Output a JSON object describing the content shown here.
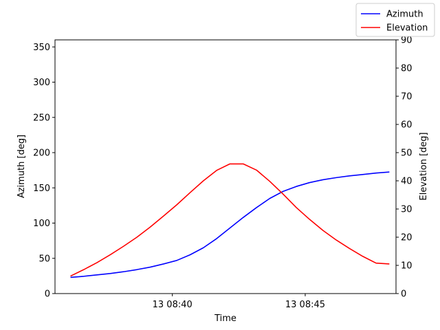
{
  "chart_data": {
    "type": "line",
    "x_unit": "time",
    "xlabel": "Time",
    "xlim": [
      "13 08:35:35",
      "13 08:48:25"
    ],
    "x_ticks": [
      {
        "value": "13 08:40:00",
        "label": "13 08:40"
      },
      {
        "value": "13 08:45:00",
        "label": "13 08:45"
      }
    ],
    "x": [
      "08:36:10",
      "08:36:40",
      "08:37:10",
      "08:37:40",
      "08:38:10",
      "08:38:40",
      "08:39:10",
      "08:39:40",
      "08:40:10",
      "08:40:40",
      "08:41:10",
      "08:41:40",
      "08:42:10",
      "08:42:40",
      "08:43:10",
      "08:43:40",
      "08:44:10",
      "08:44:40",
      "08:45:10",
      "08:45:40",
      "08:46:10",
      "08:46:40",
      "08:47:10",
      "08:47:40",
      "08:48:10"
    ],
    "y_left": {
      "label": "Azimuth [deg]",
      "lim": [
        0,
        360
      ],
      "ticks": [
        0,
        50,
        100,
        150,
        200,
        250,
        300,
        350
      ]
    },
    "y_right": {
      "label": "Elevation [deg]",
      "lim": [
        0,
        90
      ],
      "ticks": [
        0,
        10,
        20,
        30,
        40,
        50,
        60,
        70,
        80,
        90
      ]
    },
    "series": [
      {
        "name": "Azimuth",
        "axis": "left",
        "color": "#0000ff",
        "values": [
          23,
          24.5,
          26.5,
          28.5,
          31,
          34,
          37.5,
          42,
          47,
          55,
          65,
          78,
          93,
          108,
          122,
          135,
          145,
          152,
          157.5,
          161.5,
          164.5,
          167,
          169,
          171,
          172.5
        ]
      },
      {
        "name": "Elevation",
        "axis": "right",
        "color": "#ff0000",
        "values": [
          6.2,
          8.5,
          11,
          13.8,
          16.8,
          20,
          23.6,
          27.5,
          31.5,
          35.8,
          40,
          43.7,
          46,
          46,
          43.8,
          39.8,
          35.3,
          30.5,
          26.3,
          22.4,
          19,
          16,
          13.2,
          10.8,
          10.5
        ]
      }
    ],
    "legend": {
      "placement": "upper-right",
      "entries": [
        "Azimuth",
        "Elevation"
      ]
    },
    "grid": false
  }
}
